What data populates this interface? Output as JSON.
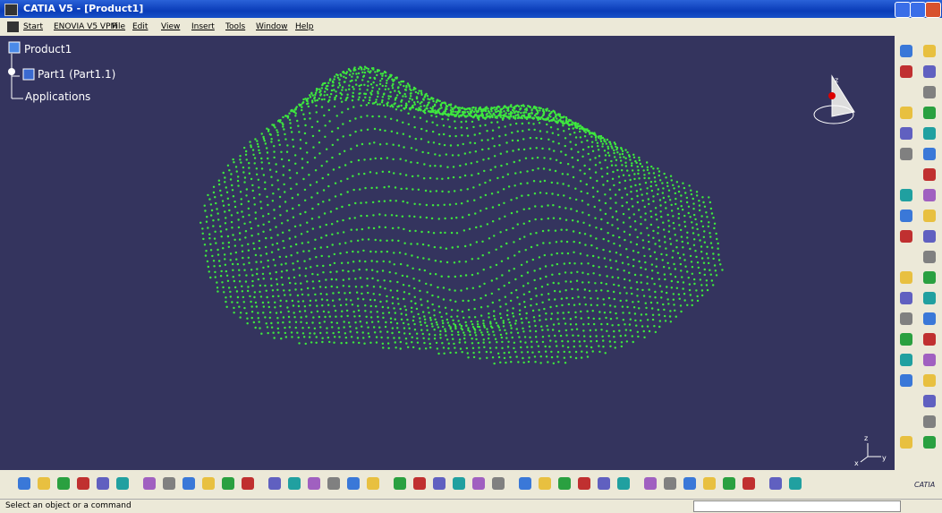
{
  "window": {
    "title": "CATIA V5 - [Product1]"
  },
  "menu": [
    "Start",
    "ENOVIA V5 VPM",
    "File",
    "Edit",
    "View",
    "Insert",
    "Tools",
    "Window",
    "Help"
  ],
  "tree": {
    "root": "Product1",
    "child": "Part1 (Part1.1)",
    "applications": "Applications"
  },
  "axis": {
    "z": "z",
    "x": "x",
    "y": "y"
  },
  "logo": "CATIA",
  "status": "Select an object or a command"
}
